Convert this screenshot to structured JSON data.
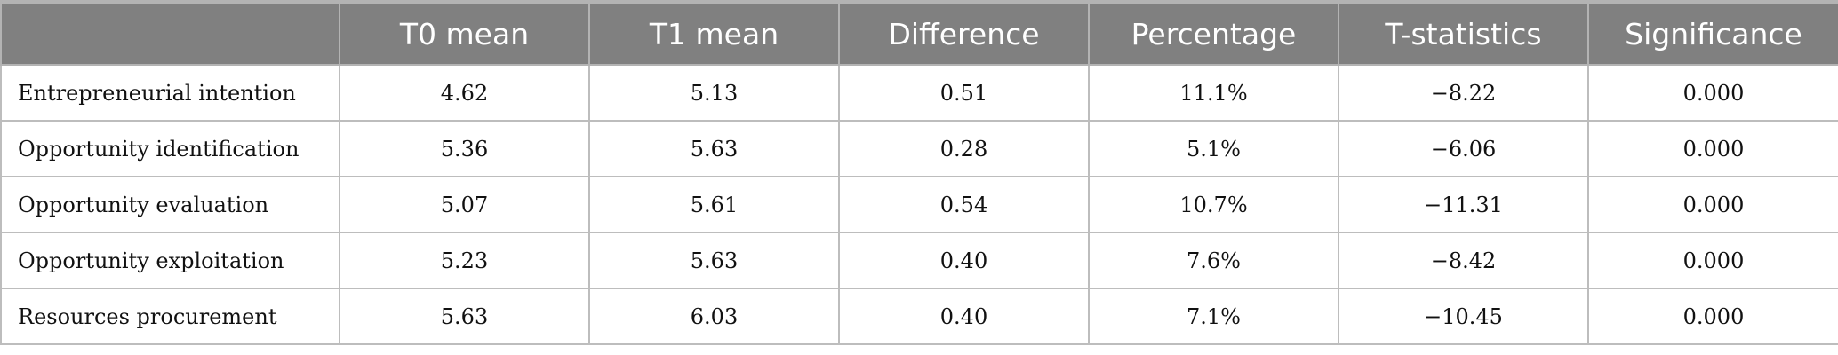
{
  "table": {
    "headers": [
      "",
      "T0 mean",
      "T1 mean",
      "Difference",
      "Percentage",
      "T-statistics",
      "Significance"
    ],
    "rows": [
      [
        "Entrepreneurial intention",
        "4.62",
        "5.13",
        "0.51",
        "11.1%",
        "−8.22",
        "0.000"
      ],
      [
        "Opportunity identification",
        "5.36",
        "5.63",
        "0.28",
        "5.1%",
        "−6.06",
        "0.000"
      ],
      [
        "Opportunity evaluation",
        "5.07",
        "5.61",
        "0.54",
        "10.7%",
        "−11.31",
        "0.000"
      ],
      [
        "Opportunity exploitation",
        "5.23",
        "5.63",
        "0.40",
        "7.6%",
        "−8.42",
        "0.000"
      ],
      [
        "Resources procurement",
        "5.63",
        "6.03",
        "0.40",
        "7.1%",
        "−10.45",
        "0.000"
      ]
    ]
  },
  "colors": {
    "header_background": "#808080",
    "header_text": "#ffffff",
    "border": "#bdbdbd"
  }
}
